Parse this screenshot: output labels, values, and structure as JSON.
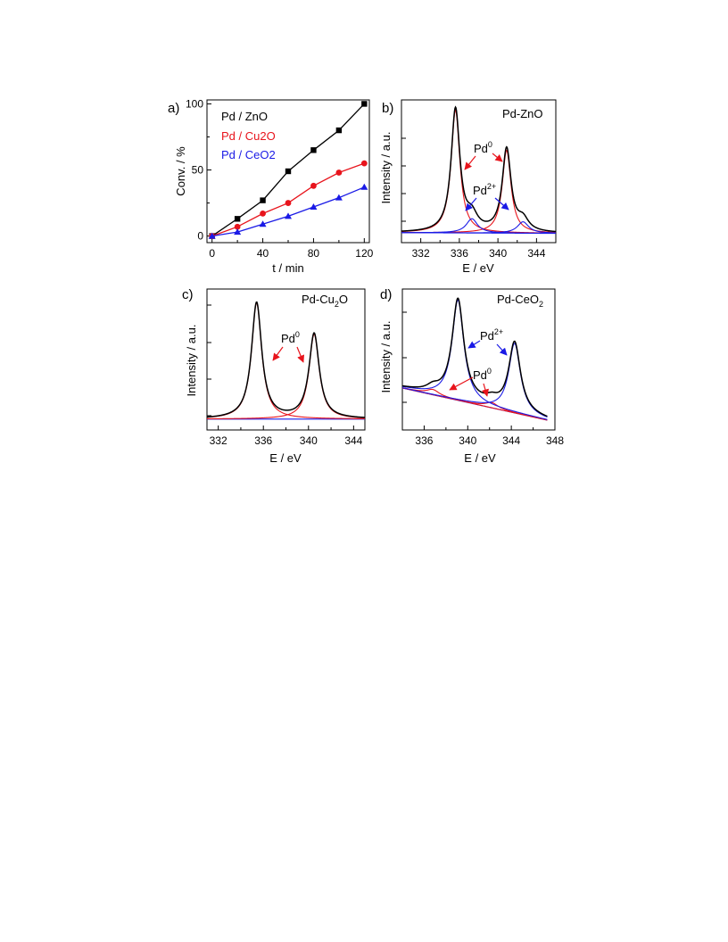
{
  "chart_data": [
    {
      "type": "scatter",
      "panel_label": "a)",
      "xlabel": "t / min",
      "ylabel": "Conv. / %",
      "xlim": [
        -4,
        124
      ],
      "ylim": [
        -5,
        103
      ],
      "xticks": [
        0,
        40,
        80,
        120
      ],
      "yticks": [
        0,
        50,
        100
      ],
      "legend_position": "top-left",
      "series": [
        {
          "name": "Pd / ZnO",
          "color": "#000000",
          "marker": "square",
          "x": [
            0,
            20,
            40,
            60,
            80,
            100,
            120
          ],
          "y": [
            0,
            13,
            27,
            49,
            65,
            80,
            100
          ]
        },
        {
          "name": "Pd / Cu2O",
          "color": "#e8141c",
          "marker": "circle",
          "x": [
            0,
            20,
            40,
            60,
            80,
            100,
            120
          ],
          "y": [
            0,
            7,
            17,
            25,
            38,
            48,
            55
          ]
        },
        {
          "name": "Pd / CeO2",
          "color": "#1a1ae6",
          "marker": "triangle",
          "x": [
            0,
            20,
            40,
            60,
            80,
            100,
            120
          ],
          "y": [
            0,
            3,
            9,
            15,
            22,
            29,
            37
          ]
        }
      ]
    },
    {
      "type": "line",
      "panel_label": "b)",
      "title": "Pd-ZnO",
      "xlabel": "E / eV",
      "ylabel": "Intensity / a.u.",
      "xlim": [
        330,
        346
      ],
      "xticks": [
        332,
        336,
        340,
        344
      ],
      "baseline": {
        "x": [
          330,
          346
        ],
        "y": [
          0.02,
          0.015
        ]
      },
      "components": [
        {
          "state": "Pd0",
          "color": "#e8141c",
          "center": 335.6,
          "height": 0.86,
          "width": 0.55
        },
        {
          "state": "Pd0",
          "color": "#e8141c",
          "center": 340.9,
          "height": 0.58,
          "width": 0.55
        },
        {
          "state": "Pd2+",
          "color": "#1a1ae6",
          "center": 337.3,
          "height": 0.1,
          "width": 0.7
        },
        {
          "state": "Pd2+",
          "color": "#1a1ae6",
          "center": 342.6,
          "height": 0.08,
          "width": 0.7
        }
      ],
      "annotations": [
        {
          "label": "Pd",
          "sup": "0",
          "color": "#e8141c"
        },
        {
          "label": "Pd",
          "sup": "2+",
          "color": "#1a1ae6"
        }
      ]
    },
    {
      "type": "line",
      "panel_label": "c)",
      "title": "Pd-Cu",
      "title_sub": "2",
      "title_end": "O",
      "xlabel": "E / eV",
      "ylabel": "Intensity / a.u.",
      "xlim": [
        331,
        345
      ],
      "xticks": [
        332,
        336,
        340,
        344
      ],
      "baseline": {
        "x": [
          331,
          345
        ],
        "y": [
          0.03,
          0.03
        ]
      },
      "components": [
        {
          "state": "Pd0",
          "color": "#e8141c",
          "center": 335.4,
          "height": 0.93,
          "width": 0.55
        },
        {
          "state": "Pd0",
          "color": "#e8141c",
          "center": 340.5,
          "height": 0.68,
          "width": 0.55
        }
      ],
      "annotations": [
        {
          "label": "Pd",
          "sup": "0",
          "color": "#e8141c"
        }
      ]
    },
    {
      "type": "line",
      "panel_label": "d)",
      "title": "Pd-CeO",
      "title_sub": "2",
      "xlabel": "E / eV",
      "ylabel": "Intensity / a.u.",
      "xlim": [
        334,
        348
      ],
      "xticks": [
        336,
        340,
        344,
        348
      ],
      "baseline": {
        "x": [
          334,
          347.3
        ],
        "y": [
          0.26,
          0.02
        ]
      },
      "components": [
        {
          "state": "Pd0",
          "color": "#e8141c",
          "center": 336.8,
          "height": 0.04,
          "width": 0.7
        },
        {
          "state": "Pd0",
          "color": "#e8141c",
          "center": 342.2,
          "height": 0.04,
          "width": 0.7
        },
        {
          "state": "Pd2+",
          "color": "#1a1ae6",
          "center": 339.1,
          "height": 0.75,
          "width": 0.65
        },
        {
          "state": "Pd2+",
          "color": "#1a1ae6",
          "center": 344.3,
          "height": 0.52,
          "width": 0.65
        }
      ],
      "annotations": [
        {
          "label": "Pd",
          "sup": "2+",
          "color": "#1a1ae6"
        },
        {
          "label": "Pd",
          "sup": "0",
          "color": "#e8141c"
        }
      ]
    }
  ]
}
